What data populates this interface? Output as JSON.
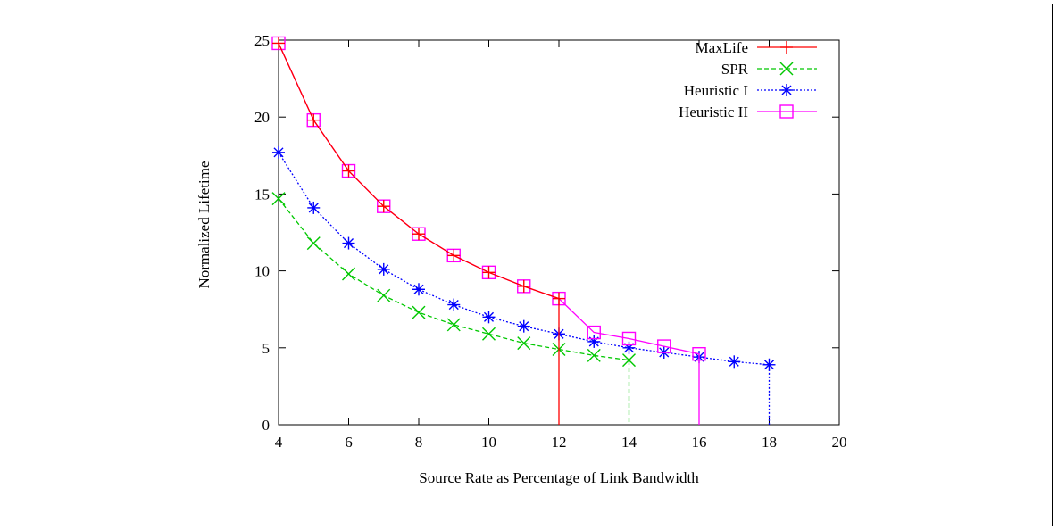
{
  "chart_data": {
    "type": "line",
    "title": "",
    "xlabel": "Source Rate as Percentage of Link Bandwidth",
    "ylabel": "Normalized Lifetime",
    "xlim": [
      4,
      20
    ],
    "ylim": [
      0,
      25
    ],
    "xticks": [
      4,
      6,
      8,
      10,
      12,
      14,
      16,
      18,
      20
    ],
    "yticks": [
      0,
      5,
      10,
      15,
      20,
      25
    ],
    "grid": false,
    "legend_position": "top-right",
    "series": [
      {
        "name": "MaxLife",
        "color": "#ff0000",
        "dash": "solid",
        "marker": "plus",
        "x": [
          4,
          5,
          6,
          7,
          8,
          9,
          10,
          11,
          12,
          12
        ],
        "y": [
          24.8,
          19.8,
          16.5,
          14.2,
          12.4,
          11.0,
          9.9,
          9.0,
          8.2,
          0
        ]
      },
      {
        "name": "SPR",
        "color": "#00c800",
        "dash": "dashed",
        "marker": "cross",
        "x": [
          4,
          5,
          6,
          7,
          8,
          9,
          10,
          11,
          12,
          13,
          14,
          14
        ],
        "y": [
          14.7,
          11.8,
          9.8,
          8.4,
          7.3,
          6.5,
          5.9,
          5.3,
          4.9,
          4.5,
          4.2,
          0
        ]
      },
      {
        "name": "Heuristic I",
        "color": "#0000ff",
        "dash": "dotted",
        "marker": "star",
        "x": [
          4,
          5,
          6,
          7,
          8,
          9,
          10,
          11,
          12,
          13,
          14,
          15,
          16,
          17,
          18,
          18
        ],
        "y": [
          17.7,
          14.1,
          11.8,
          10.1,
          8.8,
          7.8,
          7.0,
          6.4,
          5.9,
          5.4,
          5.0,
          4.7,
          4.4,
          4.1,
          3.9,
          0
        ]
      },
      {
        "name": "Heuristic II",
        "color": "#ff00ff",
        "dash": "solid",
        "marker": "square",
        "x": [
          4,
          5,
          6,
          7,
          8,
          9,
          10,
          11,
          12,
          13,
          14,
          15,
          16,
          16
        ],
        "y": [
          24.8,
          19.8,
          16.5,
          14.2,
          12.4,
          11.0,
          9.9,
          9.0,
          8.2,
          6.0,
          5.6,
          5.1,
          4.6,
          0
        ]
      }
    ]
  }
}
